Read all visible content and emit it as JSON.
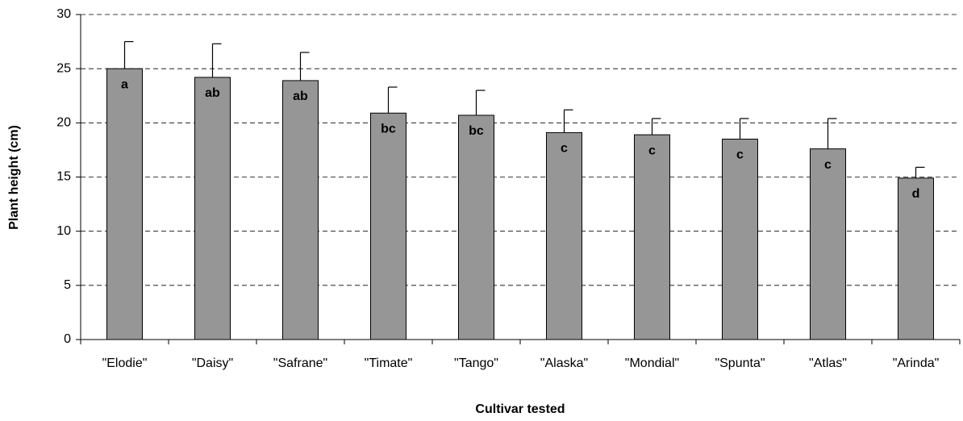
{
  "chart_data": {
    "type": "bar",
    "x_label": "Cultivar tested",
    "y_label": "Plant height (cm)",
    "categories": [
      "\"Elodie\"",
      "\"Daisy\"",
      "\"Safrane\"",
      "\"Timate\"",
      "\"Tango\"",
      "\"Alaska\"",
      "\"Mondial\"",
      "\"Spunta\"",
      "\"Atlas\"",
      "\"Arinda\""
    ],
    "values": [
      25,
      24.2,
      23.9,
      20.9,
      20.7,
      19.1,
      18.9,
      18.5,
      17.6,
      14.9
    ],
    "errors": [
      2.5,
      3.1,
      2.6,
      2.4,
      2.3,
      2.1,
      1.5,
      1.9,
      2.8,
      1.0
    ],
    "letters": [
      "a",
      "ab",
      "ab",
      "bc",
      "bc",
      "c",
      "c",
      "c",
      "c",
      "d"
    ],
    "color": "#969696",
    "ylim": [
      0,
      30
    ],
    "yticks": [
      0,
      5,
      10,
      15,
      20,
      25,
      30
    ],
    "grid": true
  }
}
